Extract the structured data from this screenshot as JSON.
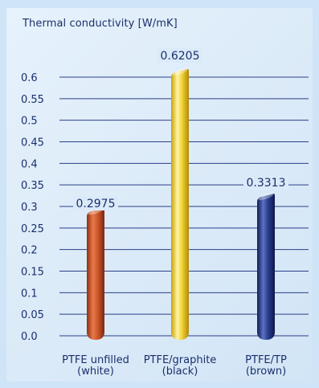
{
  "chart_data": {
    "type": "bar",
    "title": "Thermal conductivity [W/mK]",
    "xlabel": "",
    "ylabel": "",
    "ylim": [
      0,
      0.6
    ],
    "yticks": [
      0.6,
      0.55,
      0.5,
      0.45,
      0.4,
      0.35,
      0.3,
      0.25,
      0.2,
      0.15,
      0.1,
      0.05,
      0.0
    ],
    "ytick_labels": [
      "0.6",
      "0.55",
      "0.5",
      "0.45",
      "0.4",
      "0.35",
      "0.3",
      "0.25",
      "0.2",
      "0.15",
      "0.1",
      "0.05",
      "0.0"
    ],
    "grid": true,
    "categories": [
      {
        "line1": "PTFE unfilled",
        "line2": "(white)"
      },
      {
        "line1": "PTFE/graphite",
        "line2": "(black)"
      },
      {
        "line1": "PTFE/TP",
        "line2": "(brown)"
      }
    ],
    "values": [
      0.2975,
      0.6205,
      0.3313
    ],
    "value_labels": [
      "0.2975",
      "0.6205",
      "0.3313"
    ],
    "bar_colors": [
      "#c8562a",
      "#f2d33c",
      "#2a3f8f"
    ]
  },
  "colors": {
    "text": "#1b2f6b",
    "grid": "#2b3f86",
    "background": "#dbeaf8"
  }
}
